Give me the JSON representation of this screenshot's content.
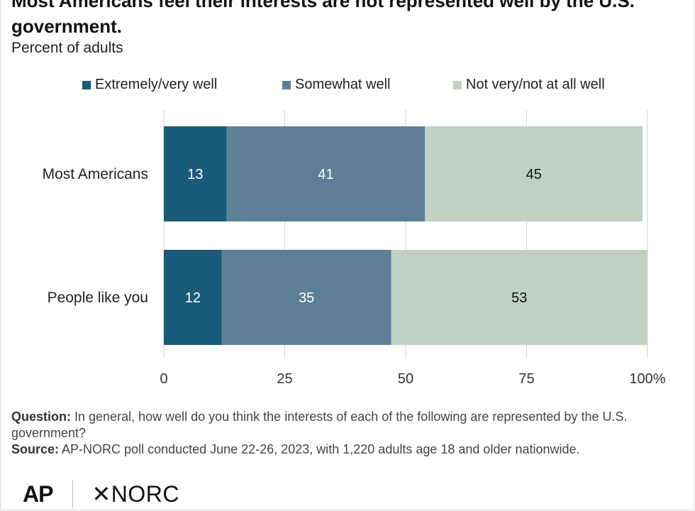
{
  "header": {
    "title": "Most Americans feel their interests are not represented well by the U.S. government.",
    "subtitle": "Percent of adults"
  },
  "legend": [
    {
      "label": "Extremely/very well",
      "color": "#1a5a7a"
    },
    {
      "label": "Somewhat well",
      "color": "#5c7f96"
    },
    {
      "label": "Not very/not at all well",
      "color": "#c0d1c4"
    }
  ],
  "chart_data": {
    "type": "bar",
    "orientation": "horizontal",
    "stacked": true,
    "categories": [
      "Most Americans",
      "People like you"
    ],
    "series": [
      {
        "name": "Extremely/very well",
        "values": [
          13,
          12
        ],
        "color": "#1a5a7a"
      },
      {
        "name": "Somewhat well",
        "values": [
          41,
          35
        ],
        "color": "#5c7f96"
      },
      {
        "name": "Not very/not at all well",
        "values": [
          45,
          53
        ],
        "color": "#c0d1c4"
      }
    ],
    "xlim": [
      0,
      100
    ],
    "xticks": [
      "0",
      "25",
      "50",
      "75",
      "100%"
    ],
    "grid": true,
    "legend_position": "top"
  },
  "notes": {
    "question_label": "Question:",
    "question_text": "In general, how well do you think the interests of each of the following are represented by the U.S. government?",
    "source_label": "Source:",
    "source_text": "AP-NORC poll conducted June 22-26, 2023, with 1,220 adults age 18 and older nationwide."
  },
  "logos": {
    "ap": "AP",
    "norc": "✕NORC"
  }
}
